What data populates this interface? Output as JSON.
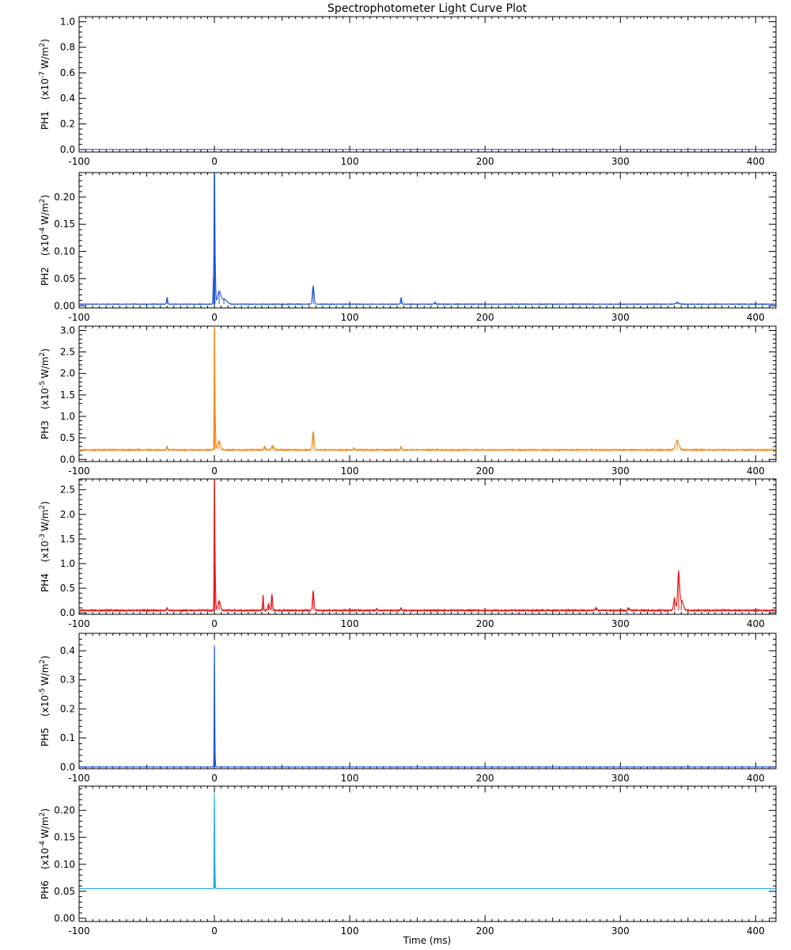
{
  "chart_data": [
    {
      "type": "line",
      "title": "Spectrophotometer Light Curve Plot",
      "xlabel": "Time (ms)",
      "xlim": [
        -100,
        415
      ],
      "xticks": [
        -100,
        0,
        100,
        200,
        300,
        400
      ],
      "panels": [
        {
          "name": "PH1",
          "scale_exponent": "-7",
          "unit": "W/m",
          "unit_exponent": "2",
          "color": "#1a52d6",
          "ylim": [
            -0.02,
            1.04
          ],
          "yticks": [
            "0.0",
            "0.2",
            "0.4",
            "0.6",
            "0.8",
            "1.0"
          ],
          "yticks_values": [
            0.0,
            0.2,
            0.4,
            0.6,
            0.8,
            1.0
          ],
          "baseline": 0.0,
          "noise": 0.0,
          "peaks": []
        },
        {
          "name": "PH2",
          "scale_exponent": "-4",
          "unit": "W/m",
          "unit_exponent": "2",
          "color": "#1a52d6",
          "ylim": [
            -0.004,
            0.245
          ],
          "yticks": [
            "0.00",
            "0.05",
            "0.10",
            "0.15",
            "0.20"
          ],
          "yticks_values": [
            0.0,
            0.05,
            0.1,
            0.15,
            0.2
          ],
          "baseline": 0.003,
          "noise": 0.0004,
          "peaks": [
            {
              "x": -35,
              "y": 0.012,
              "w": 0.6
            },
            {
              "x": 0,
              "y": 0.228,
              "w": 0.35
            },
            {
              "x": 0.4,
              "y": 0.09,
              "w": 0.6
            },
            {
              "x": -0.6,
              "y": 0.05,
              "w": 0.5
            },
            {
              "x": 3.5,
              "y": 0.022,
              "w": 1.6
            },
            {
              "x": 7,
              "y": 0.009,
              "w": 3
            },
            {
              "x": 73,
              "y": 0.033,
              "w": 0.9
            },
            {
              "x": 138,
              "y": 0.012,
              "w": 0.6
            },
            {
              "x": 163,
              "y": 0.004,
              "w": 0.6
            },
            {
              "x": 342,
              "y": 0.003,
              "w": 1.5
            }
          ]
        },
        {
          "name": "PH3",
          "scale_exponent": "-5",
          "unit": "W/m",
          "unit_exponent": "2",
          "color": "#f08a1c",
          "ylim": [
            -0.05,
            3.1
          ],
          "yticks": [
            "0.0",
            "0.5",
            "1.0",
            "1.5",
            "2.0",
            "2.5",
            "3.0"
          ],
          "yticks_values": [
            0.0,
            0.5,
            1.0,
            1.5,
            2.0,
            2.5,
            3.0
          ],
          "baseline": 0.22,
          "noise": 0.012,
          "peaks": [
            {
              "x": -35,
              "y": 0.08,
              "w": 0.6
            },
            {
              "x": 0,
              "y": 2.7,
              "w": 0.35
            },
            {
              "x": 0.4,
              "y": 0.9,
              "w": 0.6
            },
            {
              "x": 3.5,
              "y": 0.2,
              "w": 1.4
            },
            {
              "x": 37,
              "y": 0.08,
              "w": 0.8
            },
            {
              "x": 43,
              "y": 0.1,
              "w": 1.2
            },
            {
              "x": 73,
              "y": 0.42,
              "w": 0.9
            },
            {
              "x": 103,
              "y": 0.05,
              "w": 0.6
            },
            {
              "x": 138,
              "y": 0.08,
              "w": 0.6
            },
            {
              "x": 342,
              "y": 0.22,
              "w": 1.8
            }
          ]
        },
        {
          "name": "PH4",
          "scale_exponent": "-3",
          "unit": "W/m",
          "unit_exponent": "2",
          "color": "#e01a1a",
          "ylim": [
            -0.03,
            2.72
          ],
          "yticks": [
            "0.0",
            "0.5",
            "1.0",
            "1.5",
            "2.0",
            "2.5"
          ],
          "yticks_values": [
            0.0,
            0.5,
            1.0,
            1.5,
            2.0,
            2.5
          ],
          "baseline": 0.05,
          "noise": 0.014,
          "peaks": [
            {
              "x": -35,
              "y": 0.05,
              "w": 0.6
            },
            {
              "x": 0,
              "y": 2.42,
              "w": 0.35
            },
            {
              "x": 0.4,
              "y": 0.95,
              "w": 0.6
            },
            {
              "x": 3.5,
              "y": 0.2,
              "w": 1.2
            },
            {
              "x": 36,
              "y": 0.3,
              "w": 0.5
            },
            {
              "x": 40,
              "y": 0.12,
              "w": 0.8
            },
            {
              "x": 42.5,
              "y": 0.33,
              "w": 0.7
            },
            {
              "x": 73,
              "y": 0.4,
              "w": 0.8
            },
            {
              "x": 120,
              "y": 0.04,
              "w": 0.5
            },
            {
              "x": 138,
              "y": 0.05,
              "w": 0.6
            },
            {
              "x": 282,
              "y": 0.05,
              "w": 0.8
            },
            {
              "x": 306,
              "y": 0.05,
              "w": 0.8
            },
            {
              "x": 340,
              "y": 0.25,
              "w": 1.0
            },
            {
              "x": 343,
              "y": 0.72,
              "w": 1.0
            },
            {
              "x": 345,
              "y": 0.2,
              "w": 2.0
            }
          ]
        },
        {
          "name": "PH5",
          "scale_exponent": "-5",
          "unit": "W/m",
          "unit_exponent": "2",
          "color": "#1a52d6",
          "ylim": [
            -0.006,
            0.46
          ],
          "yticks": [
            "0.0",
            "0.1",
            "0.2",
            "0.3",
            "0.4"
          ],
          "yticks_values": [
            0.0,
            0.1,
            0.2,
            0.3,
            0.4
          ],
          "baseline": 0.0,
          "noise": 0.0004,
          "peaks": [
            {
              "x": 0,
              "y": 0.413,
              "w": 0.3
            },
            {
              "x": 0.4,
              "y": 0.045,
              "w": 0.4
            }
          ]
        },
        {
          "name": "PH6",
          "scale_exponent": "-4",
          "unit": "W/m",
          "unit_exponent": "2",
          "color": "#1fa8e6",
          "ylim": [
            -0.006,
            0.245
          ],
          "yticks": [
            "0.00",
            "0.05",
            "0.10",
            "0.15",
            "0.20"
          ],
          "yticks_values": [
            0.0,
            0.05,
            0.1,
            0.15,
            0.2
          ],
          "baseline": 0.055,
          "noise": 0.0,
          "peaks": [
            {
              "x": 0,
              "y": 0.172,
              "w": 0.3
            },
            {
              "x": 0.4,
              "y": 0.025,
              "w": 0.4
            }
          ]
        }
      ]
    }
  ]
}
